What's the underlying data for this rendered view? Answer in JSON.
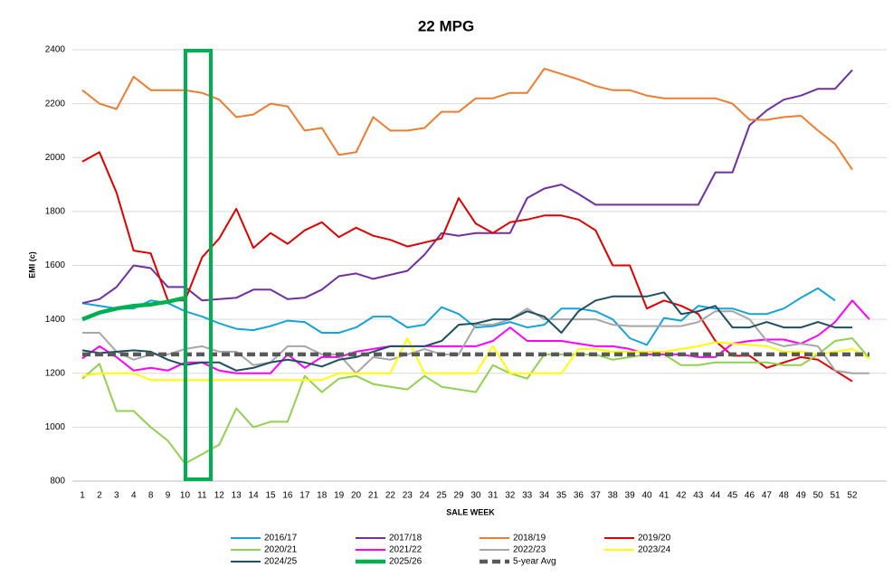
{
  "chart_data": {
    "type": "line",
    "title": "22 MPG",
    "x_label": "SALE WEEK",
    "y_label": "EMI (c)",
    "categories": [
      "1",
      "2",
      "3",
      "4",
      "8",
      "9",
      "10",
      "11",
      "12",
      "13",
      "14",
      "15",
      "16",
      "17",
      "18",
      "19",
      "20",
      "21",
      "22",
      "23",
      "24",
      "25",
      "29",
      "30",
      "31",
      "32",
      "33",
      "34",
      "35",
      "36",
      "37",
      "38",
      "39",
      "40",
      "41",
      "42",
      "43",
      "44",
      "45",
      "46",
      "47",
      "48",
      "49",
      "50",
      "51",
      "52",
      null
    ],
    "ylim": [
      800,
      2400
    ],
    "yticks": [
      800,
      1000,
      1200,
      1400,
      1600,
      1800,
      2000,
      2200,
      2400
    ],
    "grid": true,
    "legend": "bottom",
    "series": [
      {
        "name": "2016/17",
        "color": "#17a2d8",
        "width": 2,
        "values": [
          1460,
          1450,
          1440,
          1440,
          1470,
          1460,
          1430,
          1410,
          1385,
          1365,
          1360,
          1375,
          1395,
          1390,
          1350,
          1350,
          1370,
          1410,
          1410,
          1370,
          1380,
          1445,
          1420,
          1370,
          1375,
          1390,
          1370,
          1380,
          1440,
          1440,
          1430,
          1400,
          1330,
          1305,
          1405,
          1395,
          1450,
          1440,
          1440,
          1420,
          1420,
          1440,
          1480,
          1515,
          1470,
          null,
          null
        ]
      },
      {
        "name": "2017/18",
        "color": "#7030a0",
        "width": 2,
        "values": [
          1460,
          1475,
          1520,
          1600,
          1590,
          1520,
          1520,
          1470,
          1475,
          1480,
          1510,
          1510,
          1475,
          1480,
          1510,
          1560,
          1570,
          1550,
          1565,
          1580,
          1640,
          1720,
          1710,
          1720,
          1720,
          1720,
          1850,
          1885,
          1900,
          1865,
          1825,
          1825,
          1825,
          1825,
          1825,
          1825,
          1825,
          1945,
          1945,
          2120,
          2175,
          2215,
          2230,
          2255,
          2255,
          2325,
          null
        ]
      },
      {
        "name": "2018/19",
        "color": "#ed7d31",
        "width": 2,
        "values": [
          2250,
          2200,
          2180,
          2300,
          2250,
          2250,
          2250,
          2240,
          2215,
          2150,
          2160,
          2200,
          2190,
          2100,
          2110,
          2010,
          2020,
          2150,
          2100,
          2100,
          2110,
          2170,
          2170,
          2220,
          2220,
          2240,
          2240,
          2330,
          2310,
          2290,
          2265,
          2250,
          2250,
          2230,
          2220,
          2220,
          2220,
          2220,
          2200,
          2140,
          2140,
          2150,
          2155,
          2100,
          2050,
          1955,
          null
        ]
      },
      {
        "name": "2019/20",
        "color": "#e00000",
        "width": 2,
        "values": [
          1985,
          2020,
          1870,
          1655,
          1645,
          1470,
          1470,
          1630,
          1700,
          1810,
          1665,
          1720,
          1680,
          1730,
          1760,
          1705,
          1740,
          1710,
          1695,
          1670,
          1685,
          1700,
          1850,
          1755,
          1720,
          1760,
          1770,
          1785,
          1785,
          1770,
          1730,
          1600,
          1600,
          1440,
          1470,
          1450,
          1420,
          1320,
          1265,
          1265,
          1220,
          1240,
          1260,
          1250,
          1210,
          1170,
          null
        ]
      },
      {
        "name": "2020/21",
        "color": "#92d050",
        "width": 2,
        "values": [
          1180,
          1235,
          1060,
          1060,
          1000,
          950,
          865,
          900,
          935,
          1070,
          1000,
          1020,
          1020,
          1190,
          1130,
          1180,
          1190,
          1160,
          1150,
          1140,
          1190,
          1150,
          1140,
          1130,
          1230,
          1200,
          1180,
          1270,
          1270,
          1270,
          1270,
          1250,
          1260,
          1270,
          1270,
          1230,
          1230,
          1240,
          1240,
          1240,
          1240,
          1230,
          1230,
          1270,
          1320,
          1330,
          1255
        ]
      },
      {
        "name": "2021/22",
        "color": "#ff00ff",
        "width": 2,
        "values": [
          1255,
          1300,
          1260,
          1210,
          1220,
          1210,
          1240,
          1240,
          1210,
          1200,
          1200,
          1200,
          1270,
          1220,
          1260,
          1260,
          1280,
          1290,
          1300,
          1300,
          1300,
          1300,
          1300,
          1300,
          1320,
          1370,
          1320,
          1320,
          1320,
          1310,
          1300,
          1300,
          1290,
          1270,
          1270,
          1270,
          1260,
          1260,
          1310,
          1320,
          1325,
          1325,
          1310,
          1340,
          1390,
          1470,
          1400
        ]
      },
      {
        "name": "2022/23",
        "color": "#a6a6a6",
        "width": 2,
        "values": [
          1350,
          1350,
          1280,
          1250,
          1270,
          1270,
          1290,
          1300,
          1280,
          1280,
          1230,
          1240,
          1300,
          1300,
          1270,
          1270,
          1200,
          1260,
          1250,
          1270,
          1290,
          1270,
          1270,
          1380,
          1380,
          1400,
          1440,
          1400,
          1400,
          1400,
          1400,
          1380,
          1375,
          1375,
          1375,
          1375,
          1390,
          1430,
          1430,
          1400,
          1320,
          1300,
          1310,
          1300,
          1210,
          1200,
          1200
        ]
      },
      {
        "name": "2023/24",
        "color": "#ffff00",
        "width": 2,
        "values": [
          1190,
          1200,
          1200,
          1200,
          1175,
          1175,
          1175,
          1175,
          1175,
          1175,
          1175,
          1175,
          1175,
          1175,
          1175,
          1200,
          1200,
          1200,
          1200,
          1330,
          1200,
          1200,
          1200,
          1200,
          1300,
          1200,
          1200,
          1200,
          1200,
          1290,
          1290,
          1280,
          1280,
          1280,
          1280,
          1290,
          1300,
          1315,
          1310,
          1305,
          1300,
          1280,
          1280,
          1270,
          1280,
          1290,
          1255
        ]
      },
      {
        "name": "2024/25",
        "color": "#1f4e5f",
        "width": 2,
        "values": [
          1285,
          1275,
          1280,
          1285,
          1280,
          1250,
          1230,
          1240,
          1240,
          1210,
          1220,
          1240,
          1250,
          1240,
          1225,
          1250,
          1260,
          1280,
          1300,
          1300,
          1300,
          1320,
          1380,
          1385,
          1400,
          1400,
          1430,
          1410,
          1350,
          1430,
          1470,
          1485,
          1485,
          1485,
          1500,
          1420,
          1430,
          1450,
          1370,
          1370,
          1390,
          1370,
          1370,
          1390,
          1370,
          1370,
          null
        ]
      },
      {
        "name": "2025/26",
        "color": "#00b050",
        "width": 4.5,
        "values": [
          1400,
          1425,
          1440,
          1450,
          1455,
          1465,
          1480,
          null,
          null,
          null,
          null,
          null,
          null,
          null,
          null,
          null,
          null,
          null,
          null,
          null,
          null,
          null,
          null,
          null,
          null,
          null,
          null,
          null,
          null,
          null,
          null,
          null,
          null,
          null,
          null,
          null,
          null,
          null,
          null,
          null,
          null,
          null,
          null,
          null,
          null,
          null,
          null
        ]
      },
      {
        "name": "5-year Avg",
        "color": "#595959",
        "width": 4.5,
        "dashed": true,
        "values": [
          1270,
          1270,
          1270,
          1270,
          1270,
          1270,
          1270,
          1270,
          1270,
          1270,
          1270,
          1270,
          1270,
          1270,
          1270,
          1270,
          1270,
          1270,
          1270,
          1270,
          1270,
          1270,
          1270,
          1270,
          1270,
          1270,
          1270,
          1270,
          1270,
          1270,
          1270,
          1270,
          1270,
          1270,
          1270,
          1270,
          1270,
          1270,
          1270,
          1270,
          1270,
          1270,
          1270,
          1270,
          1270,
          1270,
          1270
        ]
      }
    ]
  }
}
